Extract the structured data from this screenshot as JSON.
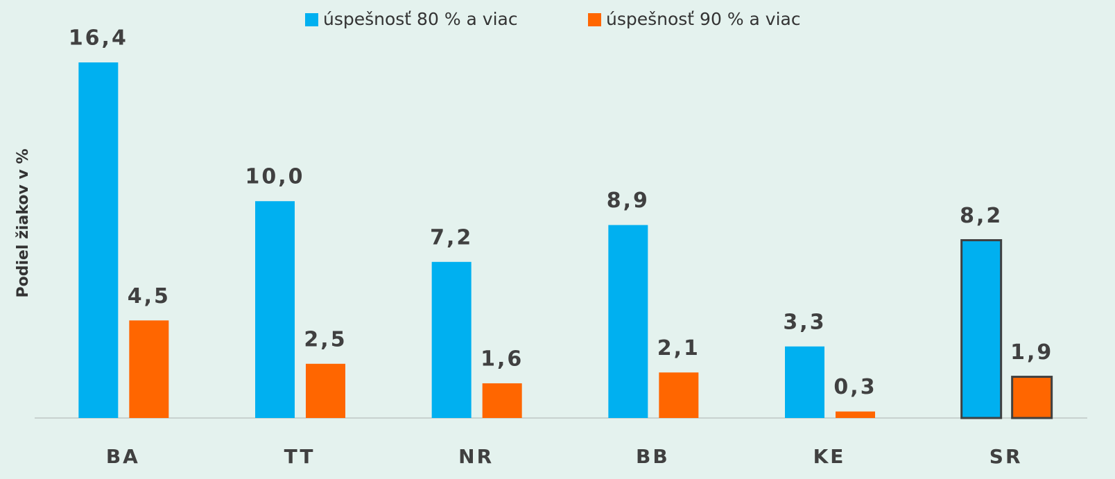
{
  "chart_data": {
    "type": "bar",
    "y_label": "Podiel žiakov v %",
    "categories": [
      "BA",
      "TT",
      "NR",
      "BB",
      "KE",
      "SR"
    ],
    "series": [
      {
        "name": "úspešnosť 80 % a viac",
        "color": "#00b0f0",
        "values": [
          16.4,
          10.0,
          7.2,
          8.9,
          3.3,
          8.2
        ],
        "value_labels": [
          "16,4",
          "10,0",
          "7,2",
          "8,9",
          "3,3",
          "8,2"
        ]
      },
      {
        "name": "úspešnosť 90 % a viac",
        "color": "#ff6600",
        "values": [
          4.5,
          2.5,
          1.6,
          2.1,
          0.3,
          1.9
        ],
        "value_labels": [
          "4,5",
          "2,5",
          "1,6",
          "2,1",
          "0,3",
          "1,9"
        ]
      }
    ],
    "ylim": [
      0,
      18
    ],
    "outlined_categories": [
      "SR"
    ],
    "legend": "top"
  }
}
